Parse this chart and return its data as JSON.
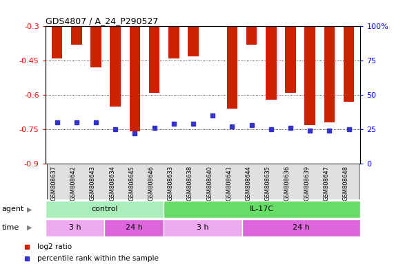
{
  "title": "GDS4807 / A_24_P290527",
  "samples": [
    "GSM808637",
    "GSM808642",
    "GSM808643",
    "GSM808634",
    "GSM808645",
    "GSM808646",
    "GSM808633",
    "GSM808638",
    "GSM808640",
    "GSM808641",
    "GSM808644",
    "GSM808635",
    "GSM808636",
    "GSM808639",
    "GSM808647",
    "GSM808648"
  ],
  "log2_values": [
    -0.44,
    -0.38,
    -0.48,
    -0.65,
    -0.76,
    -0.59,
    -0.44,
    -0.43,
    -0.3,
    -0.66,
    -0.38,
    -0.62,
    -0.59,
    -0.73,
    -0.72,
    -0.63
  ],
  "percentile_values": [
    30,
    30,
    30,
    25,
    22,
    26,
    29,
    29,
    35,
    27,
    28,
    25,
    26,
    24,
    24,
    25
  ],
  "ylim_left": [
    -0.9,
    -0.3
  ],
  "yticks_left": [
    -0.9,
    -0.75,
    -0.6,
    -0.45,
    -0.3
  ],
  "ylim_right": [
    0,
    100
  ],
  "yticks_right": [
    0,
    25,
    50,
    75,
    100
  ],
  "bar_color": "#cc2200",
  "marker_color": "#3333cc",
  "agent_groups": [
    {
      "label": "control",
      "start": 0,
      "end": 6,
      "color": "#aaeebb"
    },
    {
      "label": "IL-17C",
      "start": 6,
      "end": 16,
      "color": "#66dd66"
    }
  ],
  "time_groups": [
    {
      "label": "3 h",
      "start": 0,
      "end": 3,
      "color": "#eeaaee"
    },
    {
      "label": "24 h",
      "start": 3,
      "end": 6,
      "color": "#dd66dd"
    },
    {
      "label": "3 h",
      "start": 6,
      "end": 10,
      "color": "#eeaaee"
    },
    {
      "label": "24 h",
      "start": 10,
      "end": 16,
      "color": "#dd66dd"
    }
  ],
  "legend_items": [
    {
      "label": "log2 ratio",
      "color": "#cc2200"
    },
    {
      "label": "percentile rank within the sample",
      "color": "#3333cc"
    }
  ]
}
